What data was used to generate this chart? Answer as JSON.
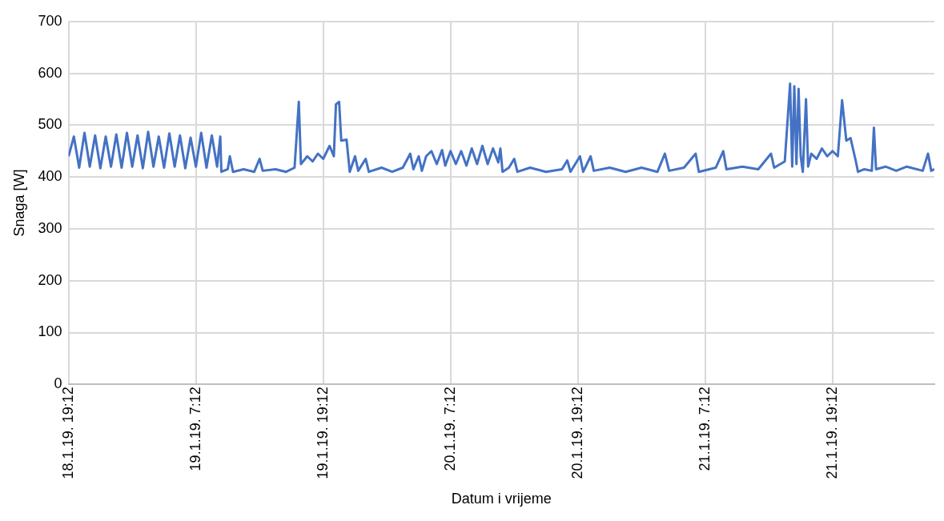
{
  "chart_data": {
    "type": "line",
    "xlabel": "Datum i vrijeme",
    "ylabel": "Snaga [W]",
    "x": [
      "--01-18T19:12",
      "--01-18T19:42",
      "--01-18T20:12",
      "--01-18T20:42",
      "--01-18T21:12",
      "--01-18T21:42",
      "--01-18T22:12",
      "--01-18T22:42",
      "--01-18T23:12",
      "--01-18T23:42",
      "--01-19T00:12",
      "--01-19T00:42",
      "--01-19T01:12",
      "--01-19T01:42",
      "--01-19T02:12",
      "--01-19T02:42",
      "--01-19T03:12",
      "--01-19T03:42",
      "--01-19T04:12",
      "--01-19T04:42",
      "--01-19T05:12",
      "--01-19T05:42",
      "--01-19T06:12",
      "--01-19T06:42",
      "--01-19T07:12",
      "--01-19T07:42",
      "--01-19T08:12",
      "--01-19T08:42",
      "--01-19T09:12",
      "--01-19T09:30",
      "--01-19T09:36",
      "--01-19T10:12",
      "--01-19T10:24",
      "--01-19T10:42",
      "--01-19T11:42",
      "--01-19T12:42",
      "--01-19T13:12",
      "--01-19T13:30",
      "--01-19T14:42",
      "--01-19T15:42",
      "--01-19T16:30",
      "--01-19T16:54",
      "--01-19T17:06",
      "--01-19T17:42",
      "--01-19T18:12",
      "--01-19T18:42",
      "--01-19T19:12",
      "--01-19T19:48",
      "--01-19T20:12",
      "--01-19T20:24",
      "--01-19T20:42",
      "--01-19T20:54",
      "--01-19T21:24",
      "--01-19T21:42",
      "--01-19T22:12",
      "--01-19T22:30",
      "--01-19T23:12",
      "--01-19T23:30",
      "--01-20T00:42",
      "--01-20T01:42",
      "--01-20T02:42",
      "--01-20T03:24",
      "--01-20T03:42",
      "--01-20T04:12",
      "--01-20T04:30",
      "--01-20T04:54",
      "--01-20T05:24",
      "--01-20T05:54",
      "--01-20T06:24",
      "--01-20T06:42",
      "--01-20T07:12",
      "--01-20T07:42",
      "--01-20T08:12",
      "--01-20T08:42",
      "--01-20T09:12",
      "--01-20T09:42",
      "--01-20T10:12",
      "--01-20T10:42",
      "--01-20T11:12",
      "--01-20T11:42",
      "--01-20T11:54",
      "--01-20T12:06",
      "--01-20T12:42",
      "--01-20T13:12",
      "--01-20T13:30",
      "--01-20T14:42",
      "--01-20T16:12",
      "--01-20T17:42",
      "--01-20T18:12",
      "--01-20T18:30",
      "--01-20T19:24",
      "--01-20T19:42",
      "--01-20T20:24",
      "--01-20T20:42",
      "--01-20T22:12",
      "--01-20T23:42",
      "--01-21T01:12",
      "--01-21T02:42",
      "--01-21T03:24",
      "--01-21T03:48",
      "--01-21T05:12",
      "--01-21T06:18",
      "--01-21T06:36",
      "--01-21T08:12",
      "--01-21T08:54",
      "--01-21T09:12",
      "--01-21T10:42",
      "--01-21T12:12",
      "--01-21T13:24",
      "--01-21T13:42",
      "--01-21T14:42",
      "--01-21T15:12",
      "--01-21T15:24",
      "--01-21T15:36",
      "--01-21T15:48",
      "--01-21T16:00",
      "--01-21T16:12",
      "--01-21T16:24",
      "--01-21T16:42",
      "--01-21T16:54",
      "--01-21T17:12",
      "--01-21T17:42",
      "--01-21T18:12",
      "--01-21T18:42",
      "--01-21T19:12",
      "--01-21T19:42",
      "--01-21T20:06",
      "--01-21T20:30",
      "--01-21T20:54",
      "--01-21T21:24",
      "--01-21T21:36",
      "--01-21T22:12",
      "--01-21T22:54",
      "--01-21T23:06",
      "--01-21T23:18",
      "--01-22T00:12",
      "--01-22T01:12",
      "--01-22T02:12",
      "--01-22T03:42",
      "--01-22T04:12",
      "--01-22T04:30",
      "--01-22T04:48"
    ],
    "series": [
      {
        "color": "#4472c4",
        "values": [
          440,
          478,
          418,
          485,
          420,
          480,
          417,
          478,
          420,
          482,
          418,
          485,
          420,
          480,
          417,
          487,
          420,
          478,
          418,
          484,
          420,
          480,
          417,
          476,
          420,
          485,
          418,
          480,
          420,
          478,
          410,
          415,
          440,
          410,
          415,
          410,
          435,
          412,
          415,
          410,
          418,
          545,
          425,
          440,
          430,
          445,
          435,
          460,
          440,
          540,
          545,
          470,
          472,
          410,
          440,
          412,
          435,
          410,
          418,
          410,
          418,
          445,
          415,
          440,
          412,
          440,
          450,
          425,
          452,
          422,
          450,
          425,
          450,
          422,
          455,
          425,
          460,
          425,
          455,
          428,
          455,
          410,
          418,
          435,
          410,
          418,
          410,
          415,
          432,
          410,
          440,
          410,
          440,
          412,
          418,
          410,
          418,
          410,
          445,
          412,
          418,
          445,
          410,
          418,
          450,
          415,
          420,
          415,
          445,
          418,
          430,
          580,
          420,
          575,
          425,
          570,
          440,
          410,
          550,
          420,
          445,
          435,
          455,
          440,
          450,
          440,
          548,
          470,
          475,
          430,
          410,
          415,
          412,
          495,
          415,
          420,
          412,
          420,
          412,
          445,
          412,
          415
        ]
      }
    ],
    "xlim": [
      "--01-18T19:12",
      "--01-22T04:48"
    ],
    "xticks": [
      {
        "value": "--01-18T19:12",
        "label": "18.1.19. 19:12"
      },
      {
        "value": "--01-19T07:12",
        "label": "19.1.19. 7:12"
      },
      {
        "value": "--01-19T19:12",
        "label": "19.1.19. 19:12"
      },
      {
        "value": "--01-20T07:12",
        "label": "20.1.19. 7:12"
      },
      {
        "value": "--01-20T19:12",
        "label": "20.1.19. 19:12"
      },
      {
        "value": "--01-21T07:12",
        "label": "21.1.19. 7:12"
      },
      {
        "value": "--01-21T19:12",
        "label": "21.1.19. 19:12"
      }
    ],
    "ylim": [
      0,
      700
    ],
    "yticks": [
      0,
      100,
      200,
      300,
      400,
      500,
      600,
      700
    ],
    "grid": true
  }
}
